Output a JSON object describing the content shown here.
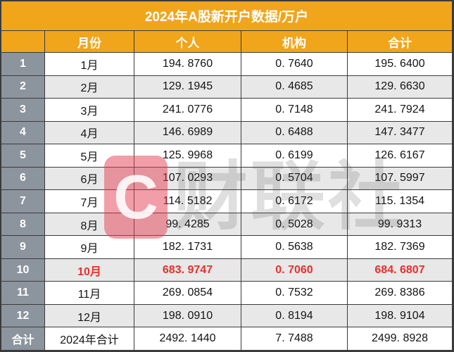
{
  "title": "2024年A股新开户数据/万户",
  "table": {
    "headers": {
      "index": "",
      "month": "月份",
      "personal": "个人",
      "institution": "机构",
      "total": "合计"
    },
    "rows": [
      {
        "num": "1",
        "month": "1月",
        "personal": "194. 8760",
        "institution": "0. 7640",
        "total": "195. 6400"
      },
      {
        "num": "2",
        "month": "2月",
        "personal": "129. 1945",
        "institution": "0. 4685",
        "total": "129. 6630"
      },
      {
        "num": "3",
        "month": "3月",
        "personal": "241. 0776",
        "institution": "0. 7148",
        "total": "241. 7924"
      },
      {
        "num": "4",
        "month": "4月",
        "personal": "146. 6989",
        "institution": "0. 6488",
        "total": "147. 3477"
      },
      {
        "num": "5",
        "month": "5月",
        "personal": "125. 9968",
        "institution": "0. 6199",
        "total": "126. 6167"
      },
      {
        "num": "6",
        "month": "6月",
        "personal": "107. 0293",
        "institution": "0. 5704",
        "total": "107. 5997"
      },
      {
        "num": "7",
        "month": "7月",
        "personal": "114. 5182",
        "institution": "0. 6172",
        "total": "115. 1354"
      },
      {
        "num": "8",
        "month": "8月",
        "personal": "99. 4285",
        "institution": "0. 5028",
        "total": "99. 9313"
      },
      {
        "num": "9",
        "month": "9月",
        "personal": "182. 1731",
        "institution": "0. 5638",
        "total": "182. 7369"
      },
      {
        "num": "10",
        "month": "10月",
        "personal": "683. 9747",
        "institution": "0. 7060",
        "total": "684. 6807"
      },
      {
        "num": "11",
        "month": "11月",
        "personal": "269. 0854",
        "institution": "0. 7532",
        "total": "269. 8386"
      },
      {
        "num": "12",
        "month": "12月",
        "personal": "198. 0910",
        "institution": "0. 8194",
        "total": "198. 9104"
      },
      {
        "num": "合计",
        "month": "2024年合计",
        "personal": "2492. 1440",
        "institution": "7. 7488",
        "total": "2499. 8928"
      }
    ],
    "highlighted_month": "10月"
  },
  "watermark": {
    "logo_glyph": "C",
    "text": "财联社"
  },
  "colors": {
    "header_orange": "#F1A51B",
    "index_gray": "#8C949E",
    "alt_row_gray": "#E8E8E8",
    "highlight_red": "#E8302A",
    "border": "#3B3B3B",
    "watermark_red": "#E63E54"
  },
  "chart_data": {
    "type": "table",
    "title": "2024年A股新开户数据/万户",
    "columns": [
      "月份",
      "个人",
      "机构",
      "合计"
    ],
    "rows": [
      [
        "1月",
        194.876,
        0.764,
        195.64
      ],
      [
        "2月",
        129.1945,
        0.4685,
        129.663
      ],
      [
        "3月",
        241.0776,
        0.7148,
        241.7924
      ],
      [
        "4月",
        146.6989,
        0.6488,
        147.3477
      ],
      [
        "5月",
        125.9968,
        0.6199,
        126.6167
      ],
      [
        "6月",
        107.0293,
        0.5704,
        107.5997
      ],
      [
        "7月",
        114.5182,
        0.6172,
        115.1354
      ],
      [
        "8月",
        99.4285,
        0.5028,
        99.9313
      ],
      [
        "9月",
        182.1731,
        0.5638,
        182.7369
      ],
      [
        "10月",
        683.9747,
        0.706,
        684.6807
      ],
      [
        "11月",
        269.0854,
        0.7532,
        269.8386
      ],
      [
        "12月",
        198.091,
        0.8194,
        198.9104
      ]
    ],
    "total_row": [
      "2024年合计",
      2492.144,
      7.7488,
      2499.8928
    ],
    "notes": "Row for 10月 rendered in red bold; unit is 万户 (10k accounts)"
  }
}
